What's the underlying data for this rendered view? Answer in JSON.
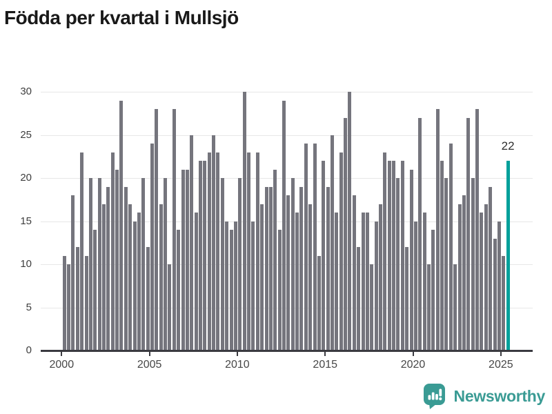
{
  "header": {
    "title": "Födda per kvartal i Mullsjö"
  },
  "chart_data": {
    "type": "bar",
    "title": "Födda per kvartal i Mullsjö",
    "x_unit": "quarter",
    "x_start": "2000 Q1",
    "x_end": "2025 Q2",
    "values_by_year": {
      "2000": [
        11,
        10,
        18,
        12
      ],
      "2001": [
        23,
        11,
        20,
        14
      ],
      "2002": [
        20,
        17,
        19,
        23
      ],
      "2003": [
        21,
        29,
        19,
        17
      ],
      "2004": [
        15,
        16,
        20,
        12
      ],
      "2005": [
        24,
        28,
        17,
        20
      ],
      "2006": [
        10,
        28,
        14,
        21
      ],
      "2007": [
        21,
        25,
        16,
        22
      ],
      "2008": [
        22,
        23,
        25,
        23
      ],
      "2009": [
        20,
        15,
        14,
        15
      ],
      "2010": [
        20,
        30,
        23,
        15
      ],
      "2011": [
        23,
        17,
        19,
        19
      ],
      "2012": [
        21,
        14,
        29,
        18
      ],
      "2013": [
        20,
        16,
        19,
        24
      ],
      "2014": [
        17,
        24,
        11,
        22
      ],
      "2015": [
        19,
        25,
        16,
        23
      ],
      "2016": [
        27,
        30,
        18,
        12
      ],
      "2017": [
        16,
        16,
        10,
        15
      ],
      "2018": [
        17,
        23,
        22,
        22
      ],
      "2019": [
        20,
        22,
        12,
        21
      ],
      "2020": [
        15,
        27,
        16,
        10
      ],
      "2021": [
        14,
        28,
        22,
        20
      ],
      "2022": [
        24,
        10,
        17,
        18
      ],
      "2023": [
        27,
        20,
        28,
        16
      ],
      "2024": [
        17,
        19,
        13,
        15
      ],
      "2025": [
        11,
        22
      ]
    },
    "highlight": {
      "position": "last",
      "quarter": "2025 Q2",
      "value": 22,
      "label": "22",
      "color": "#00A09B"
    },
    "bar_color": "#75757D",
    "ylim": [
      0,
      30
    ],
    "yticks": [
      0,
      5,
      10,
      15,
      20,
      25,
      30
    ],
    "xticks": [
      2000,
      2005,
      2010,
      2015,
      2020,
      2025
    ],
    "grid": true,
    "legend": "none",
    "annotation_color": "#2e2e2e",
    "grid_color": "#e7e7e7",
    "axis_color": "#3a3a40"
  },
  "footer": {
    "brand": "Newsworthy",
    "brand_color": "#3A9B94",
    "logo_icon": "bar-chart-speech-bubble-icon"
  }
}
